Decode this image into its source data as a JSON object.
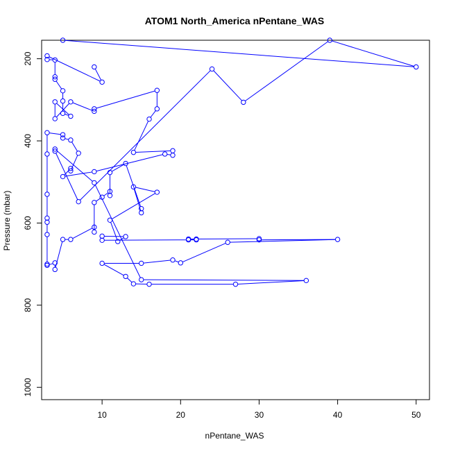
{
  "chart_data": {
    "type": "line",
    "title": "ATOM1 North_America nPentane_WAS",
    "xlabel": "nPentane_WAS",
    "ylabel": "Pressure (mbar)",
    "xlim": [
      2.3,
      51.7
    ],
    "ylim": [
      1030,
      155
    ],
    "y_reversed": true,
    "x_ticks": [
      10,
      20,
      30,
      40,
      50
    ],
    "y_ticks": [
      200,
      400,
      600,
      800,
      1000
    ],
    "line_color": "#0000ff",
    "marker": "open-circle",
    "grid": false,
    "points": [
      [
        9,
        220
      ],
      [
        10,
        257
      ],
      [
        3,
        193
      ],
      [
        3,
        202
      ],
      [
        4,
        203
      ],
      [
        4,
        244
      ],
      [
        4,
        250
      ],
      [
        5,
        278
      ],
      [
        5,
        303
      ],
      [
        5,
        333
      ],
      [
        6,
        340
      ],
      [
        4,
        305
      ],
      [
        4,
        346
      ],
      [
        6,
        305
      ],
      [
        9,
        328
      ],
      [
        9,
        322
      ],
      [
        17,
        277
      ],
      [
        17,
        322
      ],
      [
        16,
        347
      ],
      [
        14,
        428
      ],
      [
        19,
        424
      ],
      [
        19,
        435
      ],
      [
        18,
        432
      ],
      [
        9,
        475
      ],
      [
        5,
        487
      ],
      [
        6,
        467
      ],
      [
        6,
        473
      ],
      [
        7,
        430
      ],
      [
        6,
        398
      ],
      [
        5,
        393
      ],
      [
        5,
        385
      ],
      [
        3,
        380
      ],
      [
        3,
        432
      ],
      [
        3,
        530
      ],
      [
        3,
        588
      ],
      [
        3,
        598
      ],
      [
        3,
        628
      ],
      [
        3,
        700
      ],
      [
        3,
        703
      ],
      [
        4,
        697
      ],
      [
        4,
        713
      ],
      [
        5,
        640
      ],
      [
        6,
        640
      ],
      [
        9,
        610
      ],
      [
        9,
        622
      ],
      [
        9,
        550
      ],
      [
        10,
        537
      ],
      [
        11,
        523
      ],
      [
        11,
        533
      ],
      [
        11,
        477
      ],
      [
        13,
        455
      ],
      [
        15,
        565
      ],
      [
        15,
        575
      ],
      [
        14,
        512
      ],
      [
        17,
        525
      ],
      [
        11,
        593
      ],
      [
        12,
        645
      ],
      [
        13,
        633
      ],
      [
        10,
        632
      ],
      [
        10,
        642
      ],
      [
        21,
        641
      ],
      [
        22,
        641
      ],
      [
        21,
        639
      ],
      [
        22,
        639
      ],
      [
        30,
        638
      ],
      [
        30,
        641
      ],
      [
        40,
        640
      ],
      [
        26,
        647
      ],
      [
        20,
        697
      ],
      [
        19,
        690
      ],
      [
        15,
        698
      ],
      [
        10,
        698
      ],
      [
        13,
        730
      ],
      [
        14,
        748
      ],
      [
        16,
        749
      ],
      [
        27,
        749
      ],
      [
        36,
        740
      ],
      [
        15,
        738
      ],
      [
        9,
        502
      ],
      [
        4,
        420
      ],
      [
        4,
        425
      ],
      [
        7,
        548
      ],
      [
        24,
        225
      ],
      [
        28,
        306
      ],
      [
        39,
        155
      ],
      [
        50,
        220
      ],
      [
        5,
        155
      ]
    ]
  }
}
